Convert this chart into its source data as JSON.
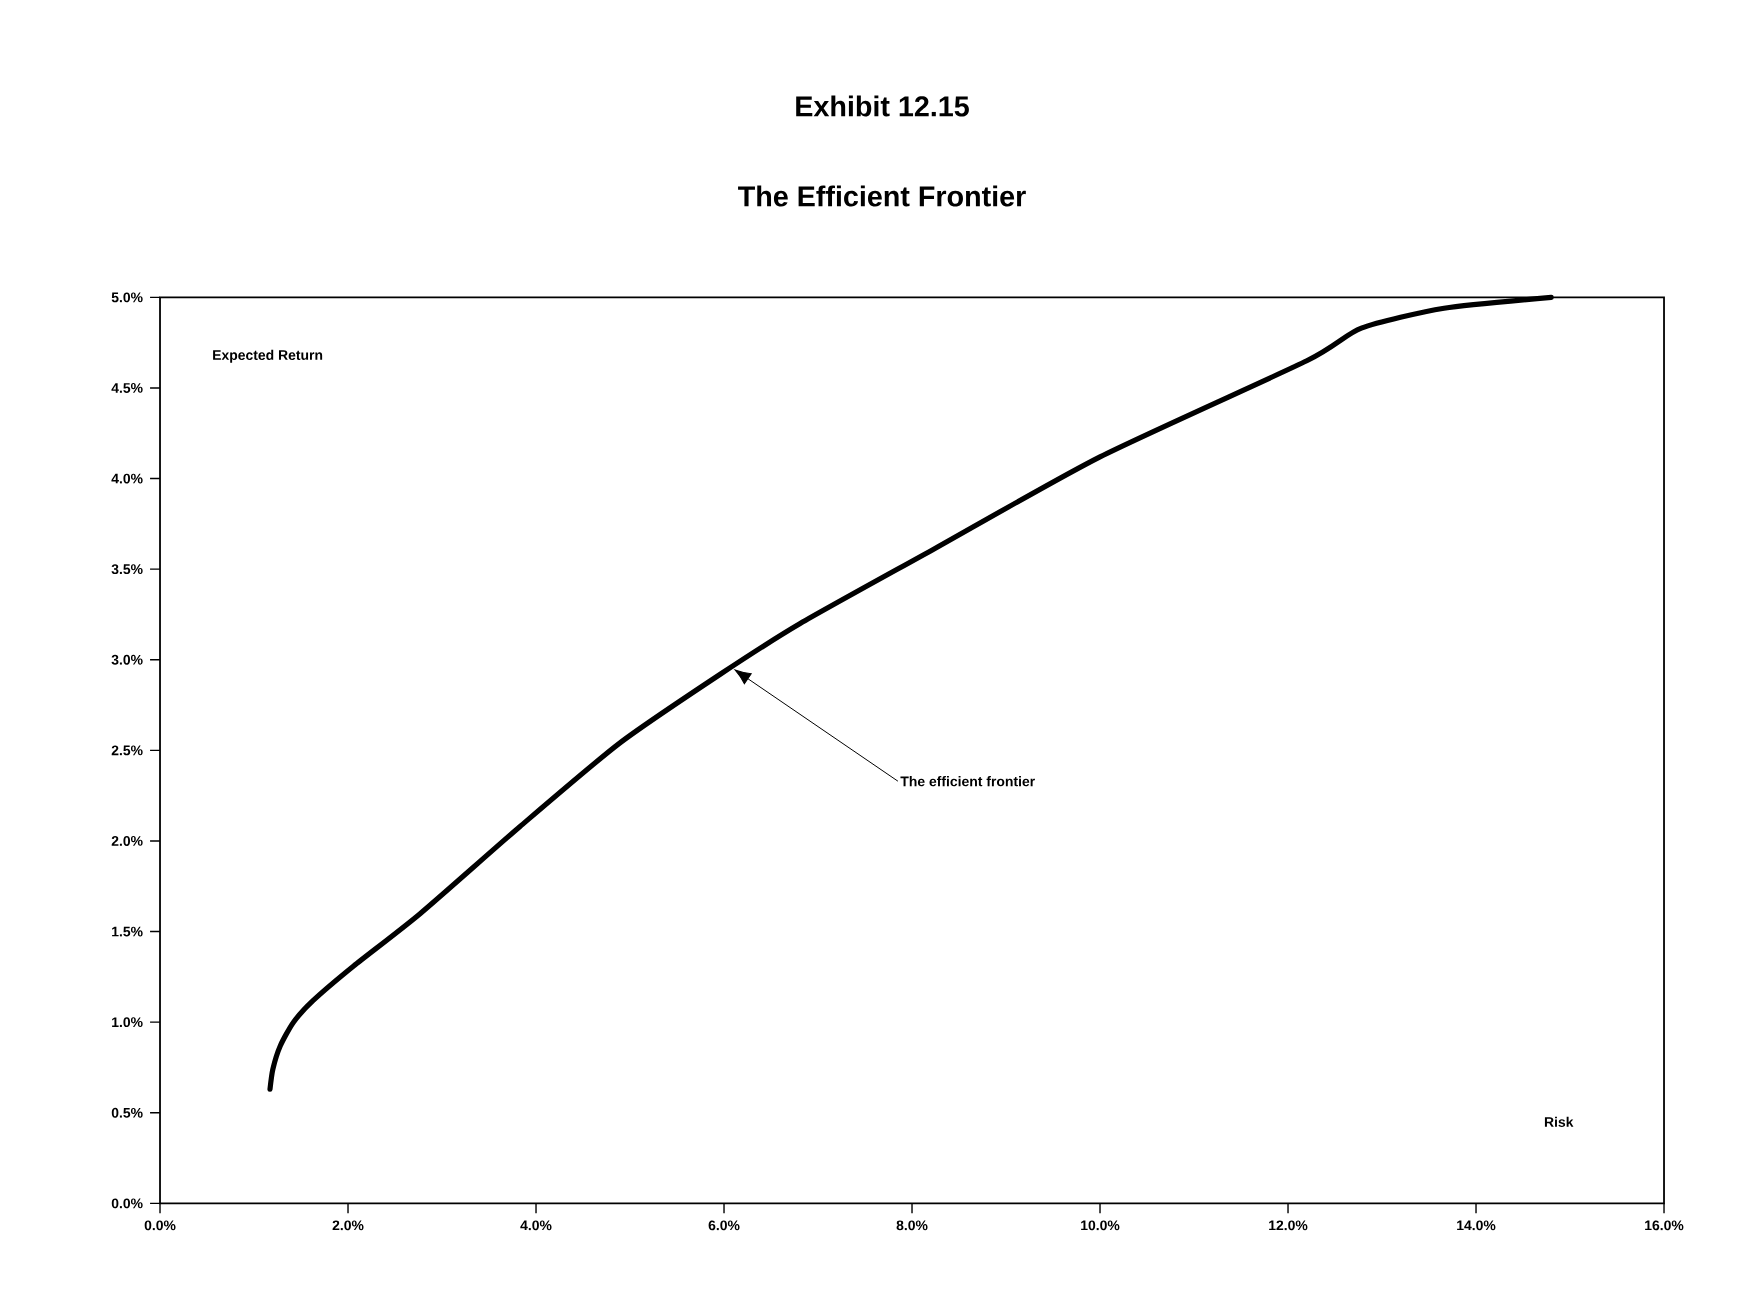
{
  "chart_data": {
    "type": "line",
    "title": "Exhibit 12.15",
    "subtitle": "The Efficient Frontier",
    "xlabel": "Risk",
    "ylabel": "Expected Return",
    "annotations": [
      {
        "text": "The efficient frontier",
        "x": 6.1,
        "y": 2.95
      }
    ],
    "x": [
      1.17,
      1.2,
      1.28,
      1.42,
      1.63,
      2.06,
      2.77,
      3.83,
      4.89,
      5.96,
      6.81,
      8.23,
      10.0,
      12.2,
      12.78,
      13.66,
      14.8
    ],
    "series": [
      {
        "color": "#000000",
        "values": [
          0.63,
          0.74,
          0.87,
          1.0,
          1.12,
          1.31,
          1.6,
          2.08,
          2.54,
          2.92,
          3.2,
          3.61,
          4.12,
          4.65,
          4.83,
          4.94,
          5.0
        ]
      }
    ],
    "xlim": [
      0,
      16
    ],
    "ylim": [
      0,
      5
    ],
    "xticks": [
      {
        "value": 0,
        "label": "0.0%"
      },
      {
        "value": 2,
        "label": "2.0%"
      },
      {
        "value": 4,
        "label": "4.0%"
      },
      {
        "value": 6,
        "label": "6.0%"
      },
      {
        "value": 8,
        "label": "8.0%"
      },
      {
        "value": 10,
        "label": "10.0%"
      },
      {
        "value": 12,
        "label": "12.0%"
      },
      {
        "value": 14,
        "label": "14.0%"
      },
      {
        "value": 16,
        "label": "16.0%"
      }
    ],
    "yticks": [
      {
        "value": 0,
        "label": "0.0%"
      },
      {
        "value": 0.5,
        "label": "0.5%"
      },
      {
        "value": 1,
        "label": "1.0%"
      },
      {
        "value": 1.5,
        "label": "1.5%"
      },
      {
        "value": 2,
        "label": "2.0%"
      },
      {
        "value": 2.5,
        "label": "2.5%"
      },
      {
        "value": 3,
        "label": "3.0%"
      },
      {
        "value": 3.5,
        "label": "3.5%"
      },
      {
        "value": 4,
        "label": "4.0%"
      },
      {
        "value": 4.5,
        "label": "4.5%"
      },
      {
        "value": 5,
        "label": "5.0%"
      }
    ],
    "grid": false,
    "marker": "none",
    "line_style": "solid"
  }
}
